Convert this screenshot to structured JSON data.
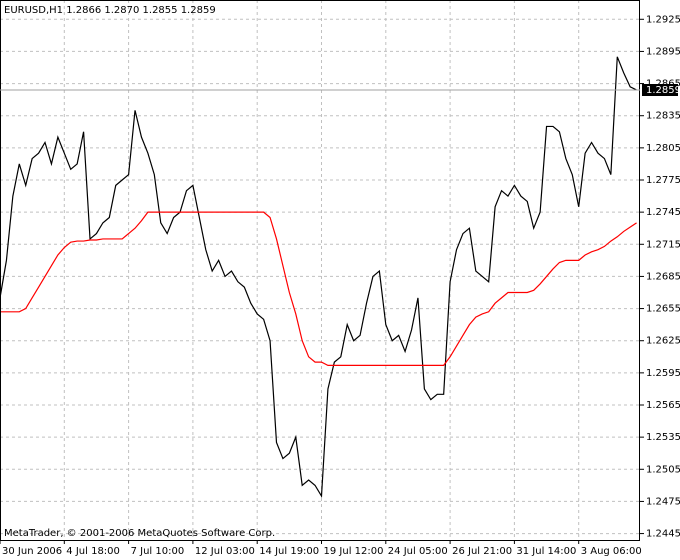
{
  "chart_data": {
    "type": "line",
    "title": "EURUSD,H1  1.2866 1.2870 1.2855 1.2859",
    "footer": "MetaTrader, © 2001-2006 MetaQuotes Software Corp.",
    "categories": [
      "30 Jun 2006",
      null,
      null,
      null,
      null,
      null,
      null,
      null,
      null,
      null,
      "4 Jul 18:00",
      null,
      null,
      null,
      null,
      null,
      null,
      null,
      null,
      null,
      "7 Jul 10:00",
      null,
      null,
      null,
      null,
      null,
      null,
      null,
      null,
      null,
      "12 Jul 03:00",
      null,
      null,
      null,
      null,
      null,
      null,
      null,
      null,
      null,
      "14 Jul 19:00",
      null,
      null,
      null,
      null,
      null,
      null,
      null,
      null,
      null,
      "19 Jul 12:00",
      null,
      null,
      null,
      null,
      null,
      null,
      null,
      null,
      null,
      "24 Jul 05:00",
      null,
      null,
      null,
      null,
      null,
      null,
      null,
      null,
      null,
      "26 Jul 21:00",
      null,
      null,
      null,
      null,
      null,
      null,
      null,
      null,
      null,
      "31 Jul 14:00",
      null,
      null,
      null,
      null,
      null,
      null,
      null,
      null,
      null,
      "3 Aug 06:00",
      null,
      null,
      null,
      null,
      null,
      null,
      null,
      null,
      null
    ],
    "series": [
      {
        "color": "#000000",
        "values": [
          1.2665,
          1.27,
          1.276,
          1.279,
          1.277,
          1.2795,
          1.28,
          1.281,
          1.279,
          1.2815,
          1.28,
          1.2785,
          1.279,
          1.282,
          1.272,
          1.2725,
          1.2735,
          1.274,
          1.277,
          1.2775,
          1.278,
          1.284,
          1.2815,
          1.28,
          1.278,
          1.2735,
          1.2725,
          1.274,
          1.2745,
          1.2765,
          1.277,
          1.274,
          1.271,
          1.269,
          1.27,
          1.2685,
          1.269,
          1.268,
          1.2675,
          1.266,
          1.265,
          1.2645,
          1.2625,
          1.253,
          1.2515,
          1.252,
          1.2535,
          1.249,
          1.2495,
          1.249,
          1.248,
          1.258,
          1.2605,
          1.261,
          1.264,
          1.2625,
          1.263,
          1.266,
          1.2685,
          1.269,
          1.264,
          1.2625,
          1.263,
          1.2615,
          1.2635,
          1.2665,
          1.258,
          1.257,
          1.2575,
          1.2575,
          1.268,
          1.271,
          1.2725,
          1.273,
          1.269,
          1.2685,
          1.268,
          1.275,
          1.2765,
          1.276,
          1.277,
          1.276,
          1.2755,
          1.273,
          1.2745,
          1.2825,
          1.2825,
          1.282,
          1.2795,
          1.278,
          1.275,
          1.28,
          1.281,
          1.28,
          1.2795,
          1.278,
          1.289,
          1.2875,
          1.2862,
          1.2859
        ]
      },
      {
        "color": "#ff0000",
        "values": [
          1.2652,
          1.2652,
          1.2652,
          1.2652,
          1.2655,
          1.2665,
          1.2675,
          1.2685,
          1.2695,
          1.2705,
          1.2712,
          1.2717,
          1.2718,
          1.2718,
          1.2719,
          1.2719,
          1.272,
          1.272,
          1.272,
          1.272,
          1.2725,
          1.273,
          1.2737,
          1.2745,
          1.2745,
          1.2745,
          1.2745,
          1.2745,
          1.2745,
          1.2745,
          1.2745,
          1.2745,
          1.2745,
          1.2745,
          1.2745,
          1.2745,
          1.2745,
          1.2745,
          1.2745,
          1.2745,
          1.2745,
          1.2745,
          1.274,
          1.272,
          1.2695,
          1.267,
          1.265,
          1.2625,
          1.261,
          1.2605,
          1.2605,
          1.2602,
          1.2602,
          1.2602,
          1.2602,
          1.2602,
          1.2602,
          1.2602,
          1.2602,
          1.2602,
          1.2602,
          1.2602,
          1.2602,
          1.2602,
          1.2602,
          1.2602,
          1.2602,
          1.2602,
          1.2602,
          1.2602,
          1.261,
          1.262,
          1.263,
          1.264,
          1.2647,
          1.265,
          1.2652,
          1.266,
          1.2665,
          1.267,
          1.267,
          1.267,
          1.267,
          1.2672,
          1.2678,
          1.2685,
          1.2692,
          1.2698,
          1.27,
          1.27,
          1.27,
          1.2705,
          1.2708,
          1.271,
          1.2713,
          1.2718,
          1.2722,
          1.2727,
          1.2731,
          1.2735
        ]
      }
    ],
    "current_price": 1.2859,
    "ylim": [
      1.2439,
      1.2943
    ],
    "yticks": [
      1.2925,
      1.2895,
      1.2865,
      1.2835,
      1.2805,
      1.2775,
      1.2745,
      1.2715,
      1.2685,
      1.2655,
      1.2625,
      1.2595,
      1.2565,
      1.2535,
      1.2505,
      1.2475,
      1.2445
    ],
    "grid": true
  }
}
